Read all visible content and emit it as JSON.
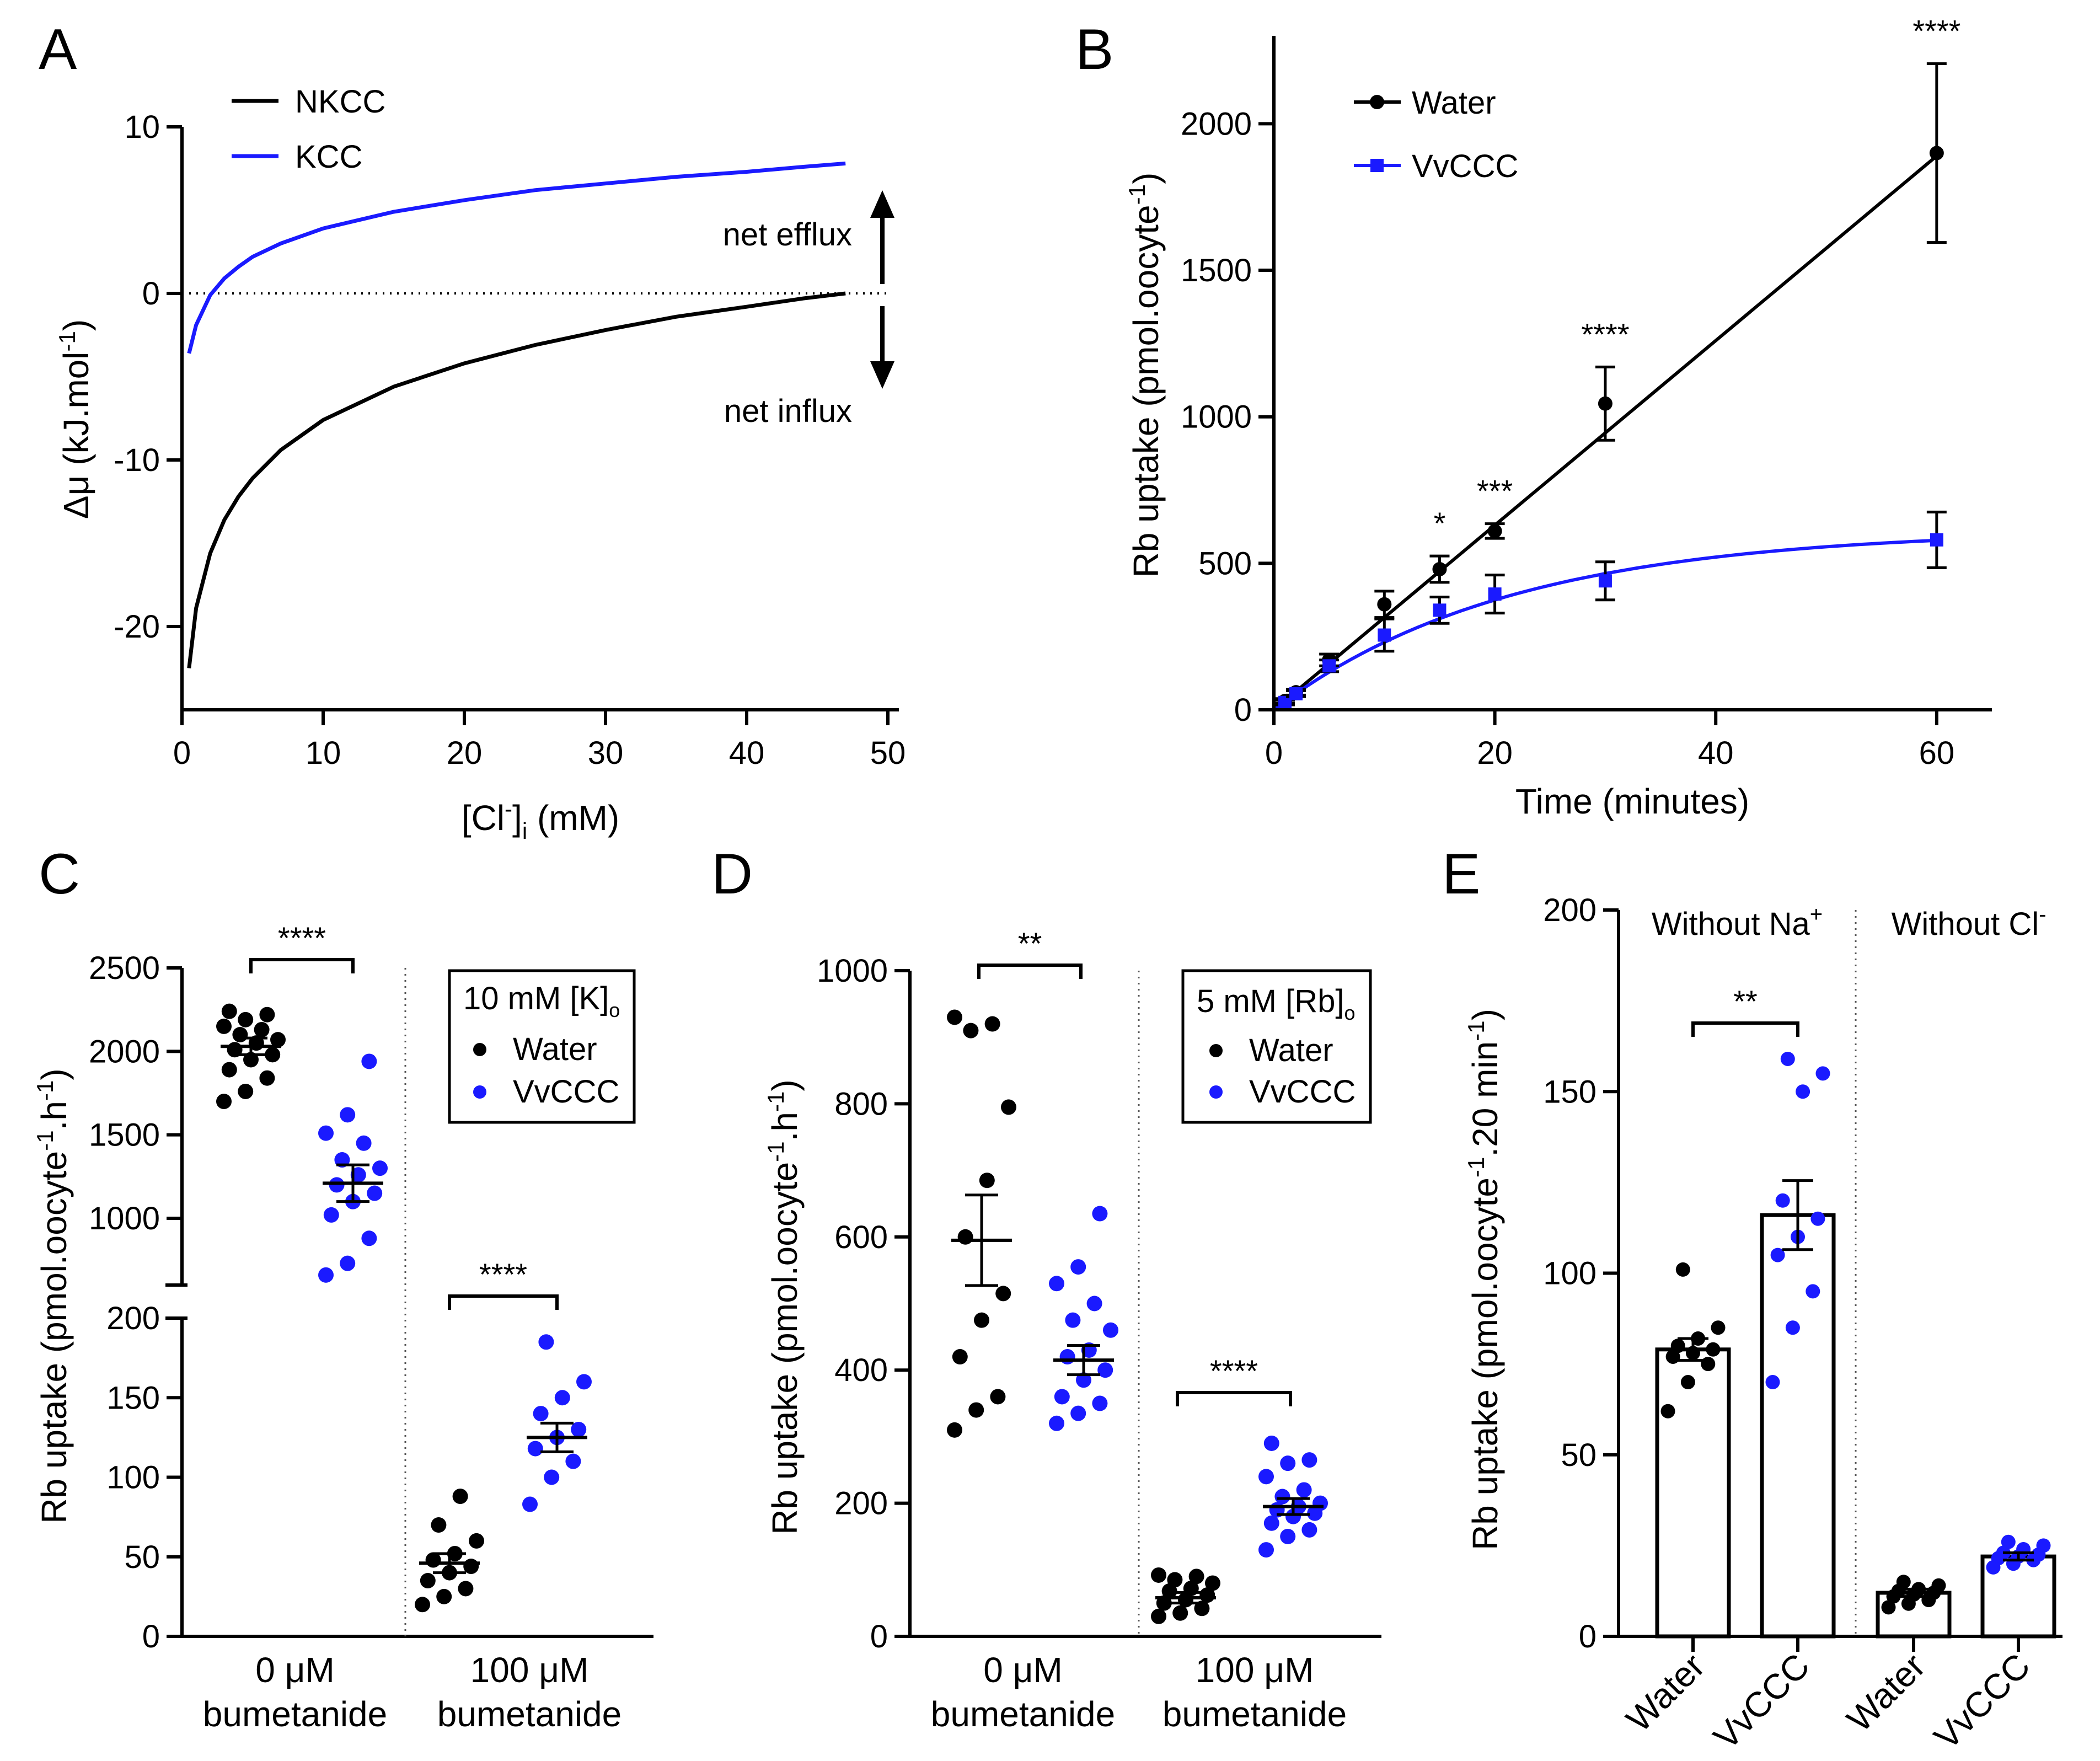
{
  "colors": {
    "black": "#000000",
    "blue": "#1a1aff"
  },
  "chart_data": [
    {
      "panel": "A",
      "type": "line",
      "xlabel_parts": [
        "[Cl",
        "-",
        "]",
        "i",
        " (mM)"
      ],
      "ylabel_parts": [
        "Δμ (kJ.mol",
        "-1",
        ")"
      ],
      "xlim": [
        0,
        50
      ],
      "ylim": [
        -25,
        10
      ],
      "xticks": [
        0,
        10,
        20,
        30,
        40,
        50
      ],
      "yticks": [
        -20,
        -10,
        0,
        10
      ],
      "ytick_labels": [
        "-20",
        "-10",
        "0",
        "10"
      ],
      "zero_line": "dotted",
      "series": [
        {
          "name": "NKCC",
          "color": "#000000",
          "x": [
            0.5,
            1,
            2,
            3,
            4,
            5,
            7,
            10,
            15,
            20,
            25,
            30,
            35,
            40,
            44,
            47
          ],
          "y": [
            -22.5,
            -18.9,
            -15.6,
            -13.6,
            -12.2,
            -11.1,
            -9.4,
            -7.6,
            -5.6,
            -4.2,
            -3.1,
            -2.2,
            -1.4,
            -0.8,
            -0.3,
            0
          ]
        },
        {
          "name": "KCC",
          "color": "#1a1aff",
          "x": [
            0.5,
            1,
            2,
            3,
            4,
            5,
            7,
            10,
            15,
            20,
            25,
            30,
            35,
            40,
            44,
            47
          ],
          "y": [
            -3.6,
            -1.9,
            -0.1,
            0.9,
            1.6,
            2.2,
            3.0,
            3.9,
            4.9,
            5.6,
            6.2,
            6.6,
            7.0,
            7.3,
            7.6,
            7.8
          ]
        }
      ],
      "annotations": {
        "efflux": "net efflux",
        "influx": "net influx"
      }
    },
    {
      "panel": "B",
      "type": "line",
      "xlabel": "Time (minutes)",
      "ylabel_parts": [
        "Rb uptake (pmol.oocyte",
        "-1",
        ")"
      ],
      "xlim": [
        0,
        60
      ],
      "ylim": [
        0,
        2300
      ],
      "xticks": [
        0,
        20,
        40,
        60
      ],
      "yticks": [
        0,
        500,
        1000,
        1500,
        2000
      ],
      "series": [
        {
          "name": "Water",
          "color": "#000000",
          "marker": "circle",
          "x": [
            1,
            2,
            5,
            10,
            15,
            20,
            30,
            60
          ],
          "y": [
            30,
            60,
            170,
            360,
            480,
            610,
            1045,
            1900
          ],
          "err": [
            8,
            10,
            20,
            45,
            45,
            25,
            125,
            305
          ]
        },
        {
          "name": "VvCCC",
          "color": "#1a1aff",
          "marker": "square",
          "x": [
            1,
            2,
            5,
            10,
            15,
            20,
            30,
            60
          ],
          "y": [
            25,
            55,
            150,
            255,
            340,
            395,
            440,
            580
          ],
          "err": [
            8,
            10,
            20,
            55,
            45,
            65,
            65,
            95
          ]
        }
      ],
      "fits": [
        {
          "name": "Water",
          "type": "linear",
          "slope": 31.5,
          "intercept": 0
        },
        {
          "name": "VvCCC",
          "type": "exp",
          "plateau": 615,
          "k": 0.047
        }
      ],
      "significance": [
        {
          "x": 15,
          "label": "*"
        },
        {
          "x": 20,
          "label": "***"
        },
        {
          "x": 30,
          "label": "****"
        },
        {
          "x": 60,
          "label": "****"
        }
      ]
    },
    {
      "panel": "C",
      "type": "scatter",
      "ylabel_parts": [
        "Rb uptake (pmol.oocyte",
        "-1",
        ".h",
        "-1",
        ")"
      ],
      "groups": [
        {
          "condition": "0 µM bumetanide",
          "name": "Water",
          "color": "#000000",
          "mean": 2030,
          "sem": 50,
          "points": [
            1700,
            1760,
            1840,
            1890,
            1950,
            1980,
            2010,
            2050,
            2070,
            2100,
            2130,
            2150,
            2190,
            2220,
            2240
          ]
        },
        {
          "condition": "0 µM bumetanide",
          "name": "VvCCC",
          "color": "#1a1aff",
          "mean": 1210,
          "sem": 110,
          "points": [
            660,
            730,
            880,
            1020,
            1100,
            1150,
            1200,
            1260,
            1300,
            1350,
            1450,
            1510,
            1620,
            1940
          ]
        },
        {
          "condition": "100 µM bumetanide",
          "name": "Water",
          "color": "#000000",
          "mean": 46,
          "sem": 6,
          "points": [
            20,
            25,
            30,
            35,
            40,
            44,
            48,
            52,
            60,
            70,
            88
          ]
        },
        {
          "condition": "100 µM bumetanide",
          "name": "VvCCC",
          "color": "#1a1aff",
          "mean": 125,
          "sem": 9,
          "points": [
            83,
            100,
            110,
            118,
            125,
            130,
            140,
            150,
            160,
            185
          ]
        }
      ],
      "x_categories": [
        [
          "0 μM",
          "bumetanide"
        ],
        [
          "100 μM",
          "bumetanide"
        ]
      ],
      "significance": [
        "****",
        "****"
      ],
      "legend_title_parts": [
        "10 mM [K]",
        "o"
      ],
      "legend": [
        "Water",
        "VvCCC"
      ],
      "upper_axis": {
        "range": [
          600,
          2500
        ],
        "ticks": [
          1000,
          1500,
          2000,
          2500
        ]
      },
      "lower_axis": {
        "range": [
          0,
          200
        ],
        "ticks": [
          0,
          50,
          100,
          150,
          200
        ]
      }
    },
    {
      "panel": "D",
      "type": "scatter",
      "ylabel_parts": [
        "Rb uptake (pmol.oocyte",
        "-1",
        ".h",
        "-1",
        ")"
      ],
      "ylim": [
        0,
        1000
      ],
      "yticks": [
        0,
        200,
        400,
        600,
        800,
        1000
      ],
      "groups": [
        {
          "condition": "0 µM bumetanide",
          "name": "Water",
          "color": "#000000",
          "mean": 595,
          "sem": 68,
          "points": [
            310,
            340,
            360,
            420,
            475,
            515,
            600,
            685,
            795,
            910,
            920,
            930
          ]
        },
        {
          "condition": "0 µM bumetanide",
          "name": "VvCCC",
          "color": "#1a1aff",
          "mean": 415,
          "sem": 22,
          "points": [
            320,
            335,
            350,
            360,
            385,
            400,
            420,
            430,
            460,
            475,
            500,
            530,
            555,
            635
          ]
        },
        {
          "condition": "100 µM bumetanide",
          "name": "Water",
          "color": "#000000",
          "mean": 58,
          "sem": 8,
          "points": [
            30,
            35,
            42,
            50,
            55,
            62,
            68,
            72,
            80,
            85,
            90,
            92
          ]
        },
        {
          "condition": "100 µM bumetanide",
          "name": "VvCCC",
          "color": "#1a1aff",
          "mean": 195,
          "sem": 12,
          "points": [
            130,
            150,
            160,
            170,
            180,
            185,
            190,
            195,
            200,
            210,
            220,
            240,
            260,
            265,
            290
          ]
        }
      ],
      "x_categories": [
        [
          "0 μM",
          "bumetanide"
        ],
        [
          "100 μM",
          "bumetanide"
        ]
      ],
      "significance": [
        "**",
        "****"
      ],
      "legend_title_parts": [
        "5 mM [Rb]",
        "o"
      ],
      "legend": [
        "Water",
        "VvCCC"
      ]
    },
    {
      "panel": "E",
      "type": "bar",
      "ylabel_parts": [
        "Rb uptake (pmol.oocyte",
        "-1",
        ".20 min",
        "-1",
        ")"
      ],
      "ylim": [
        0,
        200
      ],
      "yticks": [
        0,
        50,
        100,
        150,
        200
      ],
      "sections": [
        {
          "title_parts": [
            "Without Na",
            "+"
          ]
        },
        {
          "title_parts": [
            "Without Cl",
            "-"
          ]
        }
      ],
      "categories": [
        "Water",
        "VvCCC",
        "Water",
        "VvCCC"
      ],
      "values": [
        79,
        116,
        12,
        22
      ],
      "sem": [
        3,
        9.5,
        1,
        1
      ],
      "points": [
        [
          62,
          70,
          75,
          77,
          78,
          79,
          80,
          82,
          85,
          101
        ],
        [
          70,
          85,
          95,
          105,
          110,
          115,
          120,
          150,
          155,
          159
        ],
        [
          8,
          9,
          10,
          11,
          11.5,
          12,
          12.5,
          13,
          14,
          15
        ],
        [
          19,
          20,
          21,
          21.5,
          22,
          22.5,
          23,
          24,
          25,
          26
        ]
      ],
      "point_colors": [
        "#000000",
        "#1a1aff",
        "#000000",
        "#1a1aff"
      ],
      "significance": "**"
    }
  ],
  "panel_labels": [
    "A",
    "B",
    "C",
    "D",
    "E"
  ]
}
